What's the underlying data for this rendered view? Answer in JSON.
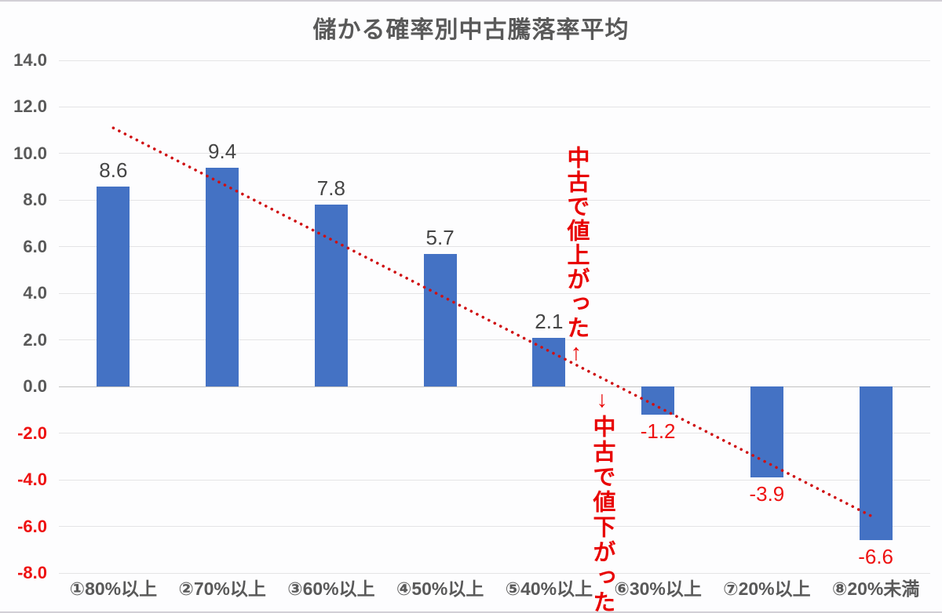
{
  "chart_data": {
    "type": "bar",
    "title": "儲かる確率別中古騰落率平均",
    "categories": [
      "①80%以上",
      "②70%以上",
      "③60%以上",
      "④50%以上",
      "⑤40%以上",
      "⑥30%以上",
      "⑦20%以上",
      "⑧20%未満"
    ],
    "values": [
      8.6,
      9.4,
      7.8,
      5.7,
      2.1,
      -1.2,
      -3.9,
      -6.6
    ],
    "yticks": [
      "14.0",
      "12.0",
      "10.0",
      "8.0",
      "6.0",
      "4.0",
      "2.0",
      "0.0",
      "-2.0",
      "-4.0",
      "-6.0",
      "-8.0"
    ],
    "ylim": [
      -8,
      14
    ],
    "xlabel": "",
    "ylabel": "",
    "grid": true,
    "legend": "none",
    "trendline": {
      "type": "linear",
      "style": "dotted",
      "start": {
        "cat_index": 0,
        "value": 11.1
      },
      "end": {
        "cat_index": 7,
        "value": -5.65
      }
    },
    "annotations": [
      {
        "id": "price-up",
        "text": "中古で値上がった↑"
      },
      {
        "id": "price-down",
        "text": "↓中古で値下がった"
      }
    ],
    "colors": {
      "bar": "#4472C4",
      "grid": "#e4e4e6",
      "zero_axis": "#c2c2c2",
      "axis_text_gray": "#595959",
      "value_label_gray": "#454545",
      "negative_red": "#ee1111",
      "annotation_red": "#e80000",
      "trendline_red": "#cf1013"
    }
  }
}
